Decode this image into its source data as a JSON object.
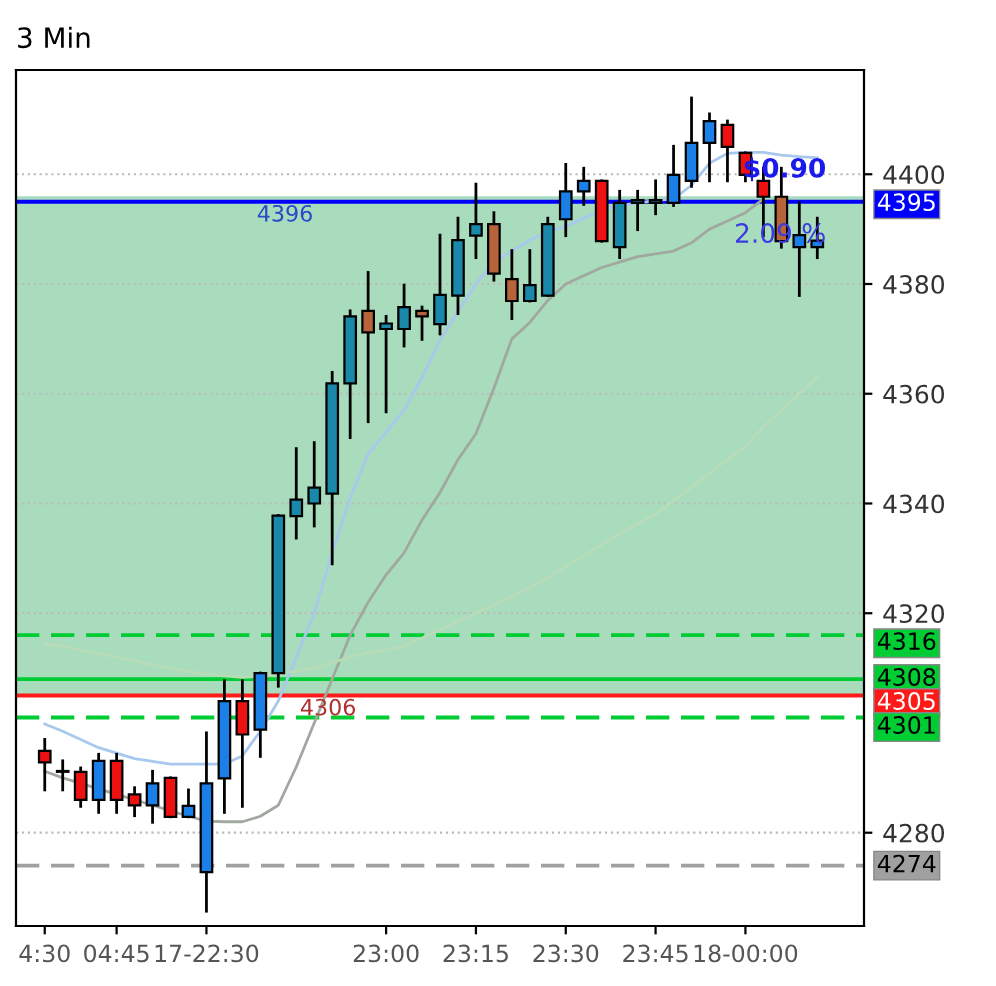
{
  "chart_data": {
    "type": "candlestick",
    "title": "3 Min",
    "categories": [
      "4:30",
      null,
      null,
      null,
      "04:45",
      null,
      null,
      null,
      null,
      "17-22:30",
      null,
      null,
      null,
      null,
      null,
      null,
      null,
      null,
      null,
      "23:00",
      null,
      null,
      null,
      null,
      "23:15",
      null,
      null,
      null,
      null,
      "23:30",
      null,
      null,
      null,
      null,
      "23:45",
      null,
      null,
      null,
      null,
      "18-00:00",
      null,
      null,
      null,
      null
    ],
    "ohlc": [
      [
        4294.9,
        4297.0,
        4287.8,
        4292.8
      ],
      [
        4291.1,
        4293.1,
        4287.8,
        4291.1
      ],
      [
        4291.1,
        4291.8,
        4284.8,
        4286.0
      ],
      [
        4286.0,
        4294.3,
        4283.7,
        4293.1
      ],
      [
        4293.1,
        4294.3,
        4283.7,
        4286.0
      ],
      [
        4287.0,
        4288.2,
        4283.1,
        4285.0
      ],
      [
        4285.0,
        4291.2,
        4281.9,
        4289.0
      ],
      [
        4290.0,
        4290.0,
        4282.9,
        4282.9
      ],
      [
        4282.9,
        4287.8,
        4282.9,
        4284.9
      ],
      [
        4272.8,
        4298.2,
        4265.7,
        4289.0
      ],
      [
        4289.9,
        4307.7,
        4283.7,
        4304.0
      ],
      [
        4304.0,
        4307.7,
        4284.8,
        4297.9
      ],
      [
        4298.8,
        4309.1,
        4293.9,
        4309.1
      ],
      [
        4309.1,
        4337.8,
        4306.7,
        4337.8
      ],
      [
        4337.7,
        4350.0,
        4333.7,
        4340.7
      ],
      [
        4340.0,
        4351.1,
        4335.9,
        4342.9
      ],
      [
        4341.8,
        4363.9,
        4329.0,
        4361.9
      ],
      [
        4361.9,
        4375.1,
        4352.0,
        4374.1
      ],
      [
        4375.1,
        4382.1,
        4354.9,
        4371.2
      ],
      [
        4371.8,
        4374.1,
        4356.7,
        4372.8
      ],
      [
        4371.8,
        4379.8,
        4368.7,
        4375.8
      ],
      [
        4375.1,
        4375.8,
        4369.9,
        4374.1
      ],
      [
        4372.7,
        4388.9,
        4370.9,
        4378.0
      ],
      [
        4377.9,
        4392.0,
        4374.6,
        4388.0
      ],
      [
        4388.8,
        4398.2,
        4384.8,
        4390.9
      ],
      [
        4390.9,
        4393.0,
        4380.7,
        4381.9
      ],
      [
        4380.9,
        4386.1,
        4373.7,
        4376.9
      ],
      [
        4376.9,
        4386.1,
        4376.9,
        4379.8
      ],
      [
        4377.9,
        4392.0,
        4377.9,
        4390.9
      ],
      [
        4391.8,
        4401.8,
        4388.8,
        4396.9
      ],
      [
        4396.9,
        4401.1,
        4394.5,
        4398.8
      ],
      [
        4398.8,
        4398.8,
        4387.8,
        4387.8
      ],
      [
        4386.7,
        4396.9,
        4384.8,
        4394.8
      ],
      [
        4394.8,
        4396.9,
        4389.9,
        4395.3
      ],
      [
        4394.8,
        4398.8,
        4392.8,
        4395.3
      ],
      [
        4394.8,
        4405.1,
        4394.3,
        4399.9
      ],
      [
        4398.8,
        4413.9,
        4397.8,
        4405.7
      ],
      [
        4405.7,
        4411.0,
        4398.8,
        4409.7
      ],
      [
        4409.0,
        4409.7,
        4398.8,
        4405.0
      ],
      [
        4403.9,
        4403.9,
        4398.8,
        4399.9
      ],
      [
        4398.8,
        4401.1,
        4388.8,
        4395.9
      ],
      [
        4395.9,
        4401.1,
        4386.7,
        4387.8
      ],
      [
        4386.7,
        4394.8,
        4377.9,
        4388.9
      ],
      [
        4386.7,
        4392.0,
        4384.8,
        4387.9
      ]
    ],
    "colors": [
      "#ee1111",
      "#1a7fe6",
      "#ee1111",
      "#1a7fe6",
      "#ee1111",
      "#ee1111",
      "#1a7fe6",
      "#ee1111",
      "#1a7fe6",
      "#1a7fe6",
      "#1a7fe6",
      "#ee1111",
      "#1a7fe6",
      "#1a88a8",
      "#1a88a8",
      "#1a88a8",
      "#1a88a8",
      "#1a88a8",
      "#b8643a",
      "#1a88a8",
      "#1a88a8",
      "#b8643a",
      "#1a88a8",
      "#1a88a8",
      "#1a88a8",
      "#b8643a",
      "#b8643a",
      "#1a88a8",
      "#1a88a8",
      "#1a7fe6",
      "#1a7fe6",
      "#ee1111",
      "#1a88a8",
      "#1a88a8",
      "#1a88a8",
      "#1a7fe6",
      "#1a7fe6",
      "#1a7fe6",
      "#ee1111",
      "#ee1111",
      "#ee1111",
      "#b8643a",
      "#1a7fe6",
      "#1a7fe6"
    ],
    "series": [
      {
        "type": "line",
        "color": "#a9c8ee",
        "values": [
          4299.8,
          4298.5,
          4297,
          4295.5,
          4294.5,
          4293.5,
          4293,
          4292.5,
          4292.5,
          4292.5,
          4292.5,
          4294,
          4298.5,
          4304,
          4312,
          4320,
          4331,
          4341,
          4349,
          4353,
          4357,
          4363,
          4369.7,
          4375,
          4380,
          4384,
          4386,
          4388,
          4389.5,
          4390.5,
          4392,
          4393.5,
          4394.3,
          4394.8,
          4395.2,
          4395.5,
          4398,
          4402,
          4403.8,
          4404,
          4404,
          4403.5,
          4403.2,
          4403
        ]
      },
      {
        "type": "line",
        "color": "#a0a8a0",
        "values": [
          4291.2,
          4290,
          4289,
          4288,
          4287,
          4286,
          4285,
          4284,
          4283,
          4282.1,
          4282,
          4282,
          4283,
          4285,
          4292,
          4300,
          4308,
          4316,
          4322,
          4327,
          4331,
          4337,
          4342,
          4348,
          4352.7,
          4361,
          4370,
          4373,
          4377,
          4380,
          4381.5,
          4383,
          4384,
          4385,
          4385.5,
          4386,
          4387.5,
          4390,
          4391.5,
          4393,
          4395.5,
          null,
          null,
          null
        ]
      },
      {
        "type": "line",
        "color": "#b8dcb8",
        "values": [
          4314.4,
          4314,
          4313.3,
          4312.6,
          4312,
          4311.3,
          4310.6,
          4310,
          4309.4,
          4308.9,
          4308.6,
          4308.3,
          4308.5,
          4309,
          4309.5,
          4310,
          4311,
          4312,
          4312.8,
          4313.3,
          4314,
          4315.5,
          4317,
          4318.5,
          4320,
          4321.5,
          4323,
          4324.7,
          4326.5,
          4328.5,
          4330.5,
          4332.5,
          4334.5,
          4336.3,
          4338.1,
          4340.5,
          4343,
          4345.5,
          4348,
          4350.5,
          4354,
          4357,
          4360,
          4363
        ]
      }
    ],
    "ylim": [
      4263,
      4419
    ],
    "yticks": [
      4280,
      4320,
      4340,
      4360,
      4380,
      4400
    ],
    "grid": "y",
    "bands": [
      {
        "axis": "y",
        "from": 4305,
        "to": 4396,
        "color": "#9fd8b6"
      }
    ],
    "ref_lines": [
      {
        "axis": "y",
        "value": 4395,
        "label": "4395",
        "color": "#0000ff",
        "line_style": "solid"
      },
      {
        "axis": "y",
        "value": 4316,
        "label": "4316",
        "color": "#00cc33",
        "line_style": "dashed"
      },
      {
        "axis": "y",
        "value": 4308,
        "label": "4308",
        "color": "#00cc33",
        "line_style": "solid"
      },
      {
        "axis": "y",
        "value": 4305,
        "label": "4305",
        "color": "#ff1a1a",
        "line_style": "solid"
      },
      {
        "axis": "y",
        "value": 4301,
        "label": "4301",
        "color": "#00cc33",
        "line_style": "dashed"
      },
      {
        "axis": "y",
        "value": 4274,
        "label": "4274",
        "color": "#a0a0a0",
        "line_style": "dashed"
      }
    ],
    "annotations": [
      {
        "text": "4396",
        "y": 4396
      },
      {
        "text": "4306",
        "y": 4306
      },
      {
        "text": "$0.90",
        "y": 4397.4
      },
      {
        "text": "2.09 %",
        "y": 4392.7
      }
    ]
  }
}
